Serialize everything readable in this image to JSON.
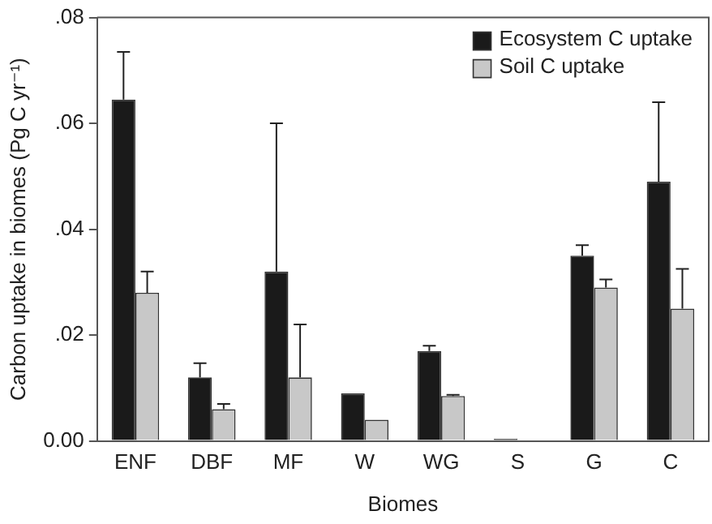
{
  "chart_data": {
    "type": "bar",
    "xlabel": "Biomes",
    "ylabel": "Carbon uptake in biomes (Pg C yr⁻¹)",
    "categories": [
      "ENF",
      "DBF",
      "MF",
      "W",
      "WG",
      "S",
      "G",
      "C"
    ],
    "series": [
      {
        "name": "Ecosystem C uptake",
        "color": "#1a1a1a",
        "values": [
          0.0645,
          0.012,
          0.032,
          0.009,
          0.017,
          0.0004,
          0.035,
          0.049
        ],
        "errors": [
          [
            0.0645,
            0.0735
          ],
          [
            0.012,
            0.0147
          ],
          [
            0.032,
            0.06
          ],
          [
            0.009,
            0.009
          ],
          [
            0.017,
            0.018
          ],
          [
            0.0004,
            0.0004
          ],
          [
            0.035,
            0.037
          ],
          [
            0.049,
            0.064
          ]
        ]
      },
      {
        "name": "Soil C uptake",
        "color": "#c8c8c8",
        "values": [
          0.028,
          0.006,
          0.012,
          0.004,
          0.0085,
          null,
          0.029,
          0.025
        ],
        "errors": [
          [
            0.028,
            0.032
          ],
          [
            0.006,
            0.007
          ],
          [
            0.012,
            0.022
          ],
          [
            0.004,
            0.004
          ],
          [
            0.0085,
            0.0087
          ],
          null,
          [
            0.029,
            0.0305
          ],
          [
            0.025,
            0.0325
          ]
        ]
      }
    ],
    "ylim": [
      0,
      0.08
    ],
    "yticks": [
      {
        "value": 0,
        "label": "0.00"
      },
      {
        "value": 0.02,
        "label": ".02"
      },
      {
        "value": 0.04,
        "label": ".04"
      },
      {
        "value": 0.06,
        "label": ".06"
      },
      {
        "value": 0.08,
        "label": ".08"
      }
    ],
    "grid": false,
    "legend": "top right"
  }
}
